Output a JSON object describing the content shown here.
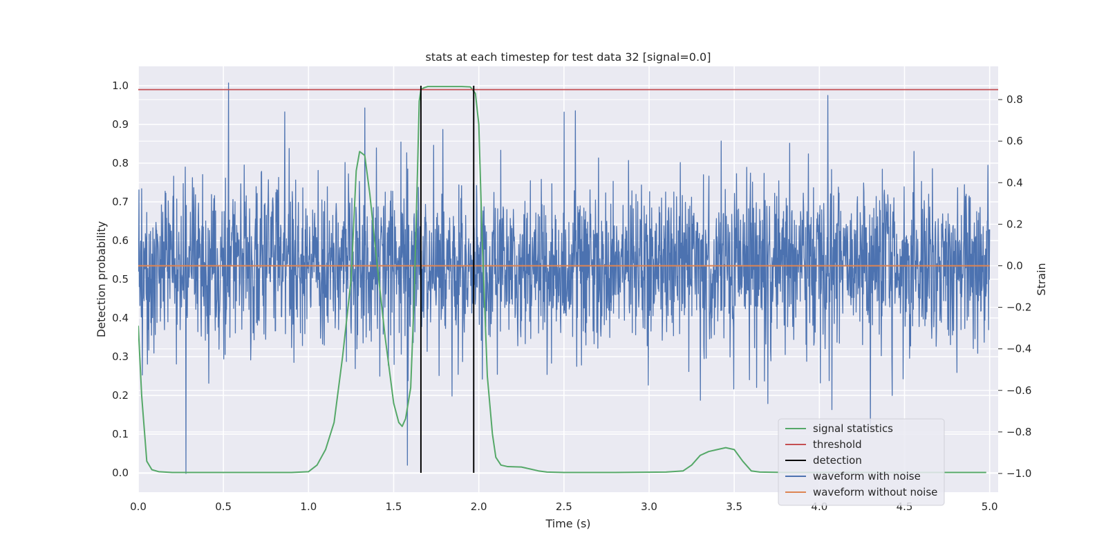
{
  "chart_data": {
    "type": "line",
    "title": "stats at each timestep for test data 32 [signal=0.0]",
    "xlabel": "Time (s)",
    "ylabel_left": "Detection probability",
    "ylabel_right": "Strain",
    "xlim": [
      0.0,
      5.05
    ],
    "ylim_left": [
      -0.05,
      1.05
    ],
    "ylim_right": [
      -1.09,
      0.96
    ],
    "x_ticks": [
      0.0,
      0.5,
      1.0,
      1.5,
      2.0,
      2.5,
      3.0,
      3.5,
      4.0,
      4.5,
      5.0
    ],
    "x_tick_labels": [
      "0.0",
      "0.5",
      "1.0",
      "1.5",
      "2.0",
      "2.5",
      "3.0",
      "3.5",
      "4.0",
      "4.5",
      "5.0"
    ],
    "y_left_ticks": [
      0.0,
      0.1,
      0.2,
      0.3,
      0.4,
      0.5,
      0.6,
      0.7,
      0.8,
      0.9,
      1.0
    ],
    "y_left_tick_labels": [
      "0.0",
      "0.1",
      "0.2",
      "0.3",
      "0.4",
      "0.5",
      "0.6",
      "0.7",
      "0.8",
      "0.9",
      "1.0"
    ],
    "y_right_ticks": [
      -1.0,
      -0.8,
      -0.6,
      -0.4,
      -0.2,
      0.0,
      0.2,
      0.4,
      0.6,
      0.8
    ],
    "y_right_tick_labels": [
      "−1.0",
      "−0.8",
      "−0.6",
      "−0.4",
      "−0.2",
      "0.0",
      "0.2",
      "0.4",
      "0.6",
      "0.8"
    ],
    "grid": true,
    "legend_position": "lower-right",
    "series": [
      {
        "name": "signal statistics",
        "color": "#55a868",
        "axis": "left",
        "x": [
          0.0,
          0.02,
          0.05,
          0.08,
          0.12,
          0.2,
          0.5,
          0.9,
          1.0,
          1.05,
          1.1,
          1.15,
          1.2,
          1.25,
          1.28,
          1.3,
          1.33,
          1.36,
          1.4,
          1.45,
          1.5,
          1.53,
          1.55,
          1.57,
          1.6,
          1.62,
          1.64,
          1.65,
          1.66,
          1.68,
          1.7,
          1.8,
          1.9,
          1.95,
          1.98,
          2.0,
          2.02,
          2.05,
          2.08,
          2.1,
          2.13,
          2.17,
          2.25,
          2.3,
          2.35,
          2.4,
          2.5,
          2.8,
          3.1,
          3.2,
          3.25,
          3.3,
          3.35,
          3.4,
          3.45,
          3.5,
          3.55,
          3.6,
          3.65,
          3.8,
          4.2,
          4.6,
          4.98
        ],
        "y": [
          0.38,
          0.2,
          0.03,
          0.008,
          0.003,
          0.001,
          0.001,
          0.001,
          0.003,
          0.02,
          0.06,
          0.13,
          0.3,
          0.5,
          0.78,
          0.83,
          0.82,
          0.72,
          0.55,
          0.35,
          0.18,
          0.13,
          0.12,
          0.14,
          0.22,
          0.45,
          0.78,
          0.96,
          0.99,
          0.995,
          0.998,
          0.998,
          0.998,
          0.997,
          0.98,
          0.9,
          0.6,
          0.25,
          0.1,
          0.04,
          0.02,
          0.016,
          0.015,
          0.01,
          0.005,
          0.002,
          0.001,
          0.001,
          0.002,
          0.005,
          0.02,
          0.045,
          0.055,
          0.06,
          0.065,
          0.06,
          0.03,
          0.005,
          0.002,
          0.001,
          0.001,
          0.001,
          0.001
        ]
      },
      {
        "name": "threshold",
        "color": "#c44e52",
        "axis": "left",
        "x": [
          0.0,
          5.05
        ],
        "y": [
          0.99,
          0.99
        ]
      },
      {
        "name": "detection",
        "color": "#000000",
        "axis": "left",
        "segments": [
          {
            "x": 1.66,
            "y_range": [
              0.0,
              1.0
            ]
          },
          {
            "x": 1.97,
            "y_range": [
              0.0,
              1.0
            ]
          }
        ]
      },
      {
        "name": "waveform with noise",
        "color": "#4c72b0",
        "axis": "right",
        "n_samples": 2500,
        "x_range": [
          0.0,
          5.0
        ],
        "y_range_approx": [
          -1.0,
          0.88
        ],
        "notable_peaks": [
          {
            "x": 0.53,
            "y": 0.88
          },
          {
            "x": 0.28,
            "y": -1.0
          },
          {
            "x": 1.33,
            "y": 0.76
          },
          {
            "x": 1.58,
            "y": -0.96
          },
          {
            "x": 2.5,
            "y": 0.74
          },
          {
            "x": 4.05,
            "y": 0.82
          },
          {
            "x": 4.3,
            "y": -0.78
          }
        ]
      },
      {
        "name": "waveform without noise",
        "color": "#dd8452",
        "axis": "right",
        "x": [
          0.0,
          5.0
        ],
        "y": [
          0.0,
          0.0
        ]
      }
    ]
  }
}
